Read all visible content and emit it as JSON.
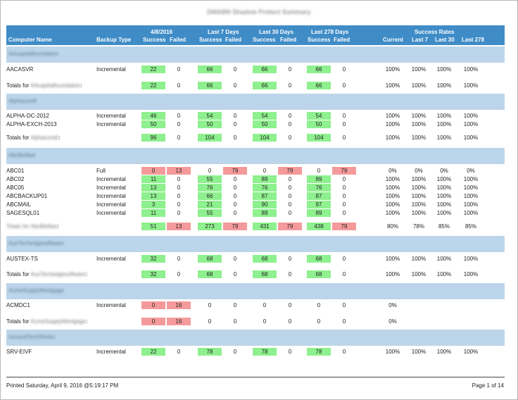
{
  "report": {
    "title": "DMABN Shadow Protect Summary",
    "printed": "Printed Saturday, April 9, 2016 @5:19:17 PM",
    "page": "Page 1 of 14"
  },
  "header": {
    "computer": "Computer Name",
    "backup_type": "Backup Type",
    "period1": "4/8/2016",
    "period2": "Last 7 Days",
    "period3": "Last 30 Days",
    "period4": "Last 278 Days",
    "success": "Success",
    "failed": "Failed",
    "rates": "Success Rates",
    "current": "Current",
    "last7": "Last 7",
    "last30": "Last 30",
    "last278": "Last 278"
  },
  "groups": [
    {
      "name": "AAcapitalfoundation",
      "rows": [
        {
          "name": "AACASVR",
          "type": "Incremental",
          "v": [
            "22",
            "0",
            "66",
            "0",
            "66",
            "0",
            "66",
            "0"
          ],
          "p": [
            "100%",
            "100%",
            "100%",
            "100%"
          ]
        }
      ],
      "totals": {
        "prefix": "Totals for ",
        "hidden": "AAcapitalfoundation",
        "suffix": ":",
        "v": [
          "22",
          "0",
          "66",
          "0",
          "66",
          "0",
          "66",
          "0"
        ],
        "p": [
          "100%",
          "100%",
          "100%",
          "100%"
        ]
      }
    },
    {
      "name": "Alphacorelt",
      "rows": [
        {
          "name": "ALPHA-DC-2012",
          "type": "Incremental",
          "v": [
            "46",
            "0",
            "54",
            "0",
            "54",
            "0",
            "54",
            "0"
          ],
          "p": [
            "100%",
            "100%",
            "100%",
            "100%"
          ]
        },
        {
          "name": "ALPHA-EXCH-2013",
          "type": "Incremental",
          "v": [
            "50",
            "0",
            "50",
            "0",
            "50",
            "0",
            "50",
            "0"
          ],
          "p": [
            "100%",
            "100%",
            "100%",
            "100%"
          ]
        }
      ],
      "totals": {
        "prefix": "Totals for ",
        "hidden": "Alphacorelt",
        "suffix": ":",
        "v": [
          "96",
          "0",
          "104",
          "0",
          "104",
          "0",
          "104",
          "0"
        ],
        "p": [
          "100%",
          "100%",
          "100%",
          "100%"
        ]
      }
    },
    {
      "name": "AbcBelfast",
      "rows": [
        {
          "name": "ABC01",
          "type": "Full",
          "v": [
            "0",
            "13",
            "0",
            "79",
            "0",
            "79",
            "0",
            "79"
          ],
          "p": [
            "0%",
            "0%",
            "0%",
            "0%"
          ]
        },
        {
          "name": "ABC02",
          "type": "Incremental",
          "v": [
            "11",
            "0",
            "55",
            "0",
            "89",
            "0",
            "89",
            "0"
          ],
          "p": [
            "100%",
            "100%",
            "100%",
            "100%"
          ]
        },
        {
          "name": "ABC05",
          "type": "Incremental",
          "v": [
            "13",
            "0",
            "76",
            "0",
            "76",
            "0",
            "76",
            "0"
          ],
          "p": [
            "100%",
            "100%",
            "100%",
            "100%"
          ]
        },
        {
          "name": "ABCBACKUP01",
          "type": "Incremental",
          "v": [
            "13",
            "0",
            "66",
            "0",
            "87",
            "0",
            "87",
            "0"
          ],
          "p": [
            "100%",
            "100%",
            "100%",
            "100%"
          ]
        },
        {
          "name": "ABCMAIL",
          "type": "Incremental",
          "v": [
            "3",
            "0",
            "21",
            "0",
            "90",
            "0",
            "97",
            "0"
          ],
          "p": [
            "100%",
            "100%",
            "100%",
            "100%"
          ]
        },
        {
          "name": "SAGESQL01",
          "type": "Incremental",
          "v": [
            "11",
            "0",
            "55",
            "0",
            "89",
            "0",
            "89",
            "0"
          ],
          "p": [
            "100%",
            "100%",
            "100%",
            "100%"
          ]
        }
      ],
      "totals": {
        "prefix": "",
        "hidden": "Totals for AbcBelfast",
        "suffix": ":",
        "v": [
          "51",
          "13",
          "273",
          "79",
          "431",
          "79",
          "438",
          "79"
        ],
        "p": [
          "80%",
          "78%",
          "85%",
          "85%"
        ]
      }
    },
    {
      "name": "AusTechedgesoftware",
      "rows": [
        {
          "name": "AUSTEX-TS",
          "type": "Incremental",
          "v": [
            "32",
            "0",
            "68",
            "0",
            "68",
            "0",
            "68",
            "0"
          ],
          "p": [
            "100%",
            "100%",
            "100%",
            "100%"
          ]
        }
      ],
      "totals": {
        "prefix": "Totals for ",
        "hidden": "AusTechedgesoftware",
        "suffix": ":",
        "v": [
          "32",
          "0",
          "68",
          "0",
          "68",
          "0",
          "68",
          "0"
        ],
        "p": [
          "100%",
          "100%",
          "100%",
          "100%"
        ]
      }
    },
    {
      "name": "AcmeSupplyMortgage",
      "rows": [
        {
          "name": "ACMDC1",
          "type": "Incremental",
          "v": [
            "0",
            "16",
            "0",
            "0",
            "0",
            "0",
            "0",
            "0"
          ],
          "p": [
            "0%",
            "",
            "",
            ""
          ]
        }
      ],
      "totals": {
        "prefix": "Totals for ",
        "hidden": "AcmeSupplyMortgage",
        "suffix": ":",
        "v": [
          "0",
          "16",
          "0",
          "0",
          "0",
          "0",
          "0",
          "0"
        ],
        "p": [
          "0%",
          "",
          "",
          ""
        ]
      }
    },
    {
      "name": "AscendTechWorks",
      "rows": [
        {
          "name": "SRV-EIVF",
          "type": "Incremental",
          "v": [
            "22",
            "0",
            "78",
            "0",
            "78",
            "0",
            "78",
            "0"
          ],
          "p": [
            "100%",
            "100%",
            "100%",
            "100%"
          ]
        }
      ],
      "totals": null
    }
  ],
  "colors": {
    "header": "#3f8cc7",
    "group": "#bcd5ea",
    "success": "#8ef08e",
    "failed": "#f59a9a"
  }
}
